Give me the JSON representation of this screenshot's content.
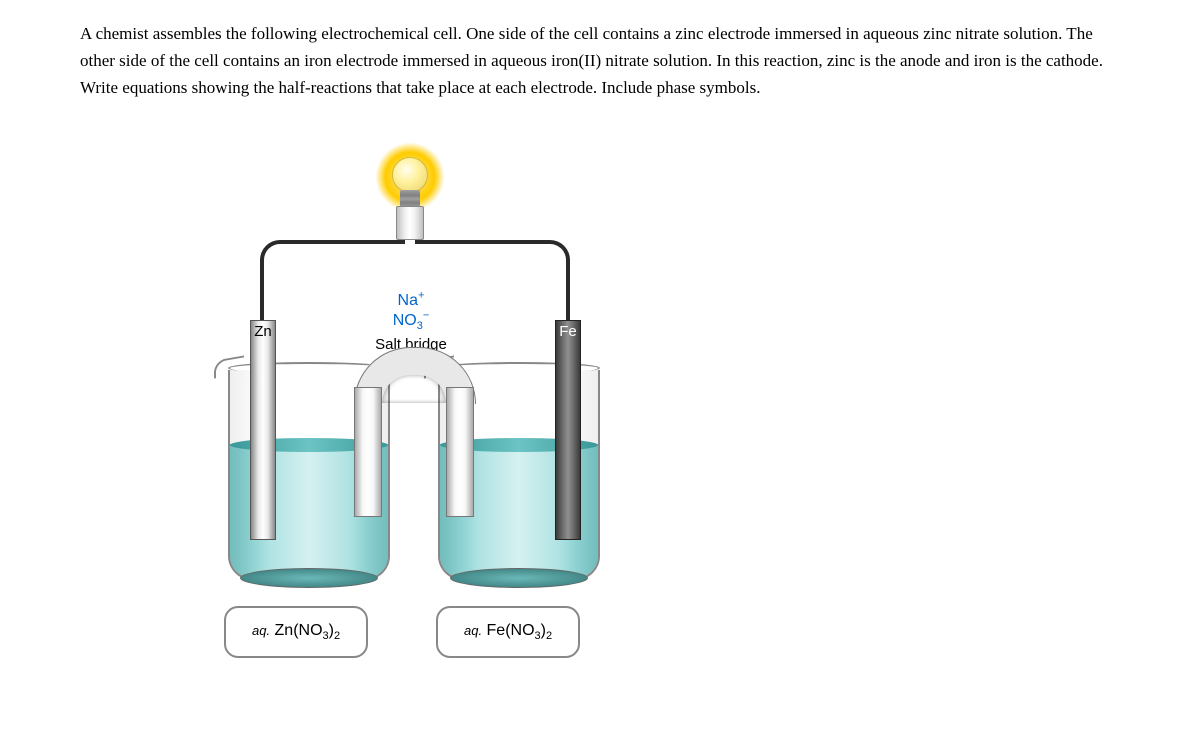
{
  "question": {
    "text": "A chemist assembles the following electrochemical cell. One side of the cell contains a zinc electrode immersed in aqueous zinc nitrate solution. The other side of the cell contains an iron electrode immersed in aqueous iron(II) nitrate solution. In this reaction, zinc is the anode and iron is the cathode. Write equations showing the half-reactions that take place at each electrode. Include phase symbols."
  },
  "diagram": {
    "electrode_left": {
      "symbol": "Zn",
      "color_gradient": [
        "#888888",
        "#e8e8e8",
        "#ffffff"
      ],
      "label_color": "#000000"
    },
    "electrode_right": {
      "symbol": "Fe",
      "color_gradient": [
        "#3a3a3a",
        "#707070",
        "#909090"
      ],
      "label_color": "#ffffff"
    },
    "salt_bridge": {
      "cation_html": "Na<sup>+</sup>",
      "anion_html": "NO<sub>3</sub><sup>−</sup>",
      "label": "Salt bridge",
      "label_color": "#0066cc"
    },
    "solution_left": {
      "prefix": "aq.",
      "formula_html": "Zn(NO<sub>3</sub>)<sub>2</sub>",
      "color": "#a8e0e0"
    },
    "solution_right": {
      "prefix": "aq.",
      "formula_html": "Fe(NO<sub>3</sub>)<sub>2</sub>",
      "color": "#a8e0e0"
    },
    "bulb": {
      "glow_color": "#ffd940",
      "state": "on"
    },
    "wire_color": "#2a2a2a"
  },
  "colors": {
    "text": "#000000",
    "background": "#ffffff",
    "link_blue": "#0066cc",
    "border_gray": "#888888"
  }
}
